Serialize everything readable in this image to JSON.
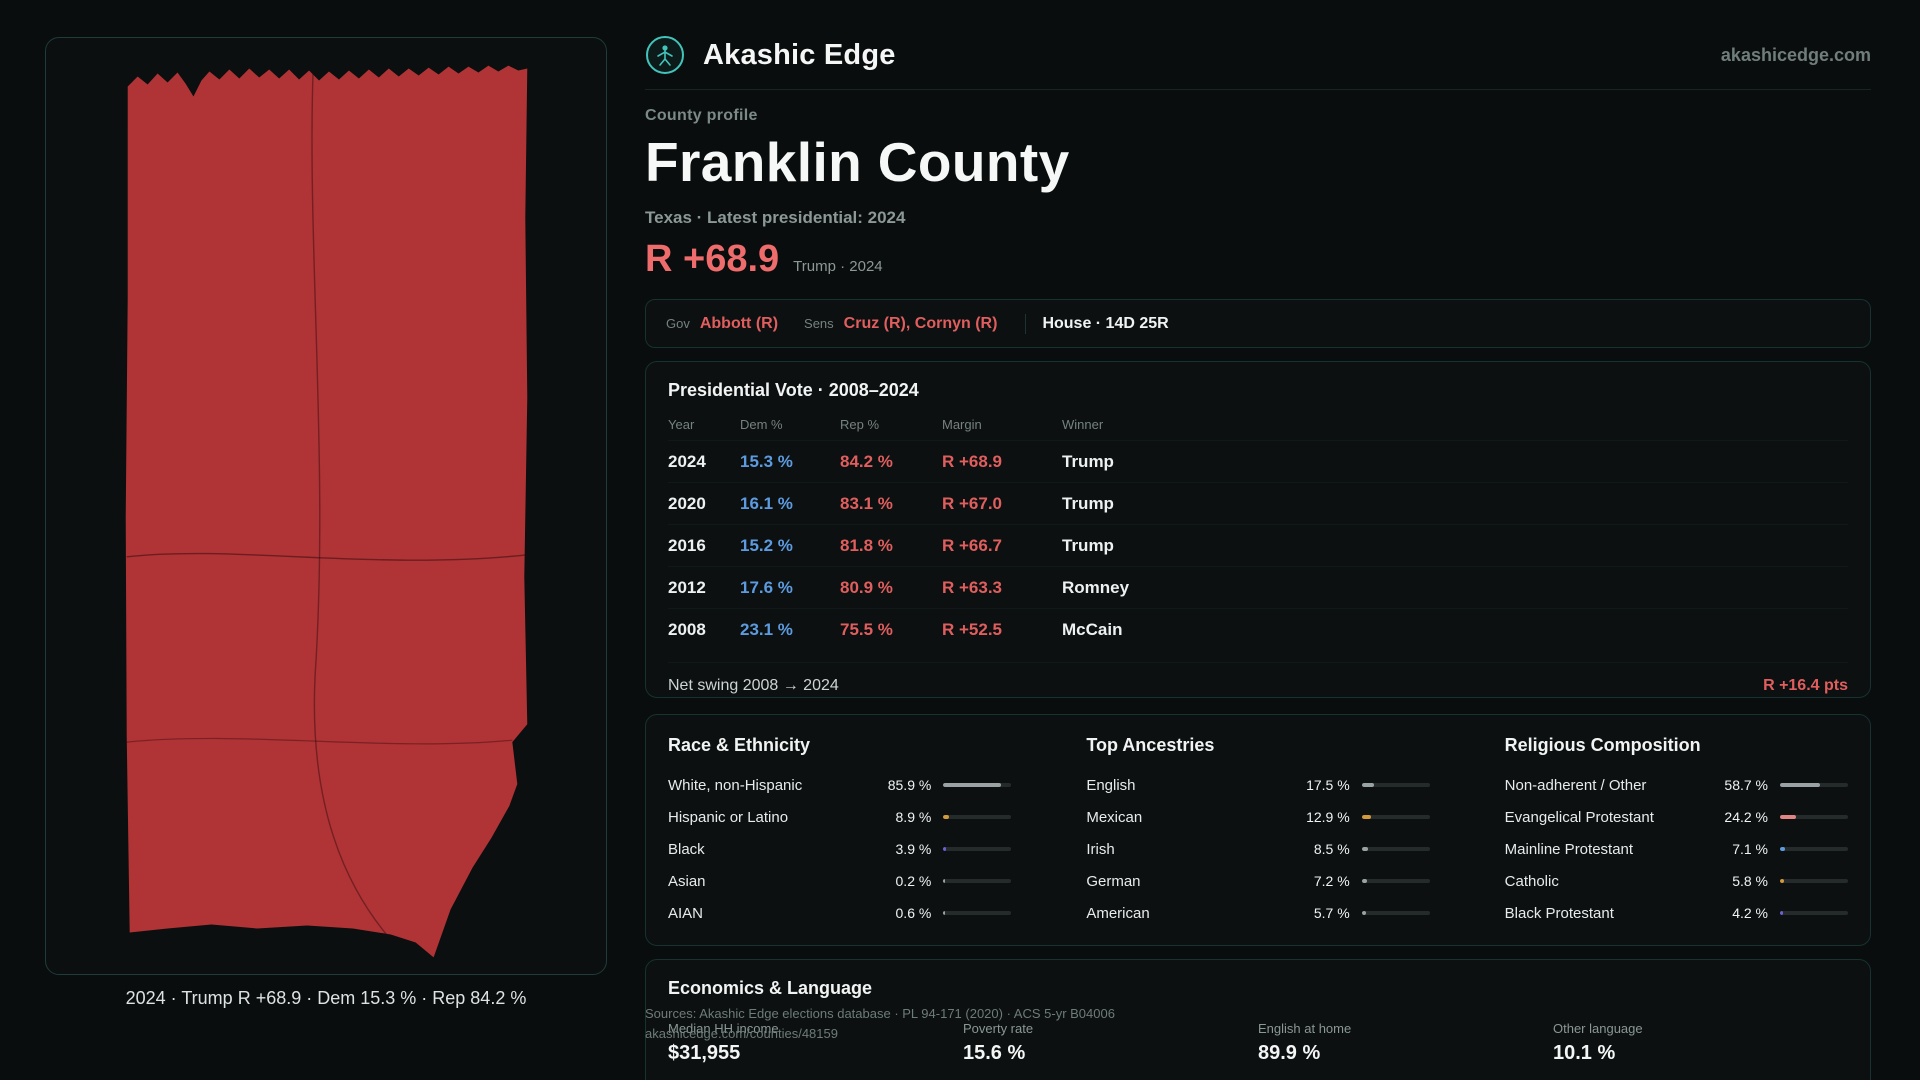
{
  "header": {
    "brand": "Akashic Edge",
    "site": "akashicedge.com"
  },
  "map": {
    "caption": "2024 · Trump R +68.9 · Dem 15.3 % · Rep 84.2 %"
  },
  "profile": {
    "kicker": "County profile",
    "title": "Franklin County",
    "subtitle": "Texas · Latest presidential: 2024",
    "margin": "R +68.9",
    "margin_note": "Trump · 2024"
  },
  "officials": {
    "gov_label": "Gov",
    "gov_value": "Abbott (R)",
    "sens_label": "Sens",
    "sens_value": "Cruz (R), Cornyn (R)",
    "house_value": "House · 14D 25R"
  },
  "pres_table": {
    "title": "Presidential Vote · 2008–2024",
    "columns": [
      "Year",
      "Dem %",
      "Rep %",
      "Margin",
      "Winner"
    ],
    "rows": [
      [
        "2024",
        "15.3 %",
        "84.2 %",
        "R +68.9",
        "Trump"
      ],
      [
        "2020",
        "16.1 %",
        "83.1 %",
        "R +67.0",
        "Trump"
      ],
      [
        "2016",
        "15.2 %",
        "81.8 %",
        "R +66.7",
        "Trump"
      ],
      [
        "2012",
        "17.6 %",
        "80.9 %",
        "R +63.3",
        "Romney"
      ],
      [
        "2008",
        "23.1 %",
        "75.5 %",
        "R +52.5",
        "McCain"
      ]
    ],
    "swing_label": "Net swing 2008 → 2024",
    "swing_value": "R +16.4 pts"
  },
  "demographics": [
    {
      "title": "Race & Ethnicity",
      "rows": [
        {
          "label": "White, non-Hispanic",
          "value": "85.9 %",
          "pct": 85.9,
          "color": "#9aa3a3"
        },
        {
          "label": "Hispanic or Latino",
          "value": "8.9 %",
          "pct": 8.9,
          "color": "#d29a3a"
        },
        {
          "label": "Black",
          "value": "3.9 %",
          "pct": 3.9,
          "color": "#6f5fd6"
        },
        {
          "label": "Asian",
          "value": "0.2 %",
          "pct": 0.2,
          "color": "#9aa3a3"
        },
        {
          "label": "AIAN",
          "value": "0.6 %",
          "pct": 0.6,
          "color": "#9aa3a3"
        }
      ]
    },
    {
      "title": "Top Ancestries",
      "rows": [
        {
          "label": "English",
          "value": "17.5 %",
          "pct": 17.5,
          "color": "#9aa3a3"
        },
        {
          "label": "Mexican",
          "value": "12.9 %",
          "pct": 12.9,
          "color": "#d29a3a"
        },
        {
          "label": "Irish",
          "value": "8.5 %",
          "pct": 8.5,
          "color": "#9aa3a3"
        },
        {
          "label": "German",
          "value": "7.2 %",
          "pct": 7.2,
          "color": "#9aa3a3"
        },
        {
          "label": "American",
          "value": "5.7 %",
          "pct": 5.7,
          "color": "#9aa3a3"
        }
      ]
    },
    {
      "title": "Religious Composition",
      "rows": [
        {
          "label": "Non-adherent / Other",
          "value": "58.7 %",
          "pct": 58.7,
          "color": "#9aa3a3"
        },
        {
          "label": "Evangelical Protestant",
          "value": "24.2 %",
          "pct": 24.2,
          "color": "#e08585"
        },
        {
          "label": "Mainline Protestant",
          "value": "7.1 %",
          "pct": 7.1,
          "color": "#5d9be0"
        },
        {
          "label": "Catholic",
          "value": "5.8 %",
          "pct": 5.8,
          "color": "#d29a3a"
        },
        {
          "label": "Black Protestant",
          "value": "4.2 %",
          "pct": 4.2,
          "color": "#6f5fd6"
        }
      ]
    }
  ],
  "economics": {
    "title": "Economics & Language",
    "stats": [
      {
        "label": "Median HH income",
        "value": "$31,955"
      },
      {
        "label": "Poverty rate",
        "value": "15.6 %"
      },
      {
        "label": "English at home",
        "value": "89.9 %"
      },
      {
        "label": "Other language",
        "value": "10.1 %"
      }
    ]
  },
  "sources": {
    "line1": "Sources: Akashic Edge elections database · PL 94-171 (2020) · ACS 5-yr B04006",
    "line2": "akashicedge.com/counties/48159"
  },
  "colors": {
    "county_fill": "#b03336",
    "accent_red": "#ef6c6c",
    "dem_blue": "#5d9be0",
    "rep_red": "#e05e5e",
    "logo_teal": "#41c4ba"
  }
}
